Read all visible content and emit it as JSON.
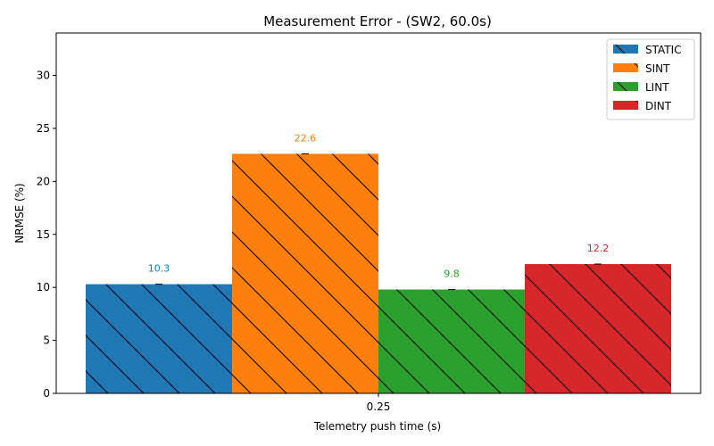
{
  "chart_data": {
    "type": "bar",
    "title": "Measurement Error - (SW2, 60.0s)",
    "xlabel": "Telemetry push time (s)",
    "ylabel": "NRMSE (%)",
    "categories": [
      "0.25"
    ],
    "ylim": [
      0,
      34
    ],
    "yticks": [
      0,
      5,
      10,
      15,
      20,
      25,
      30
    ],
    "hatch": "diagonal",
    "legend_position": "top-right",
    "series": [
      {
        "name": "STATIC",
        "values": [
          10.3
        ],
        "labels": [
          "10.3"
        ],
        "color": "#1f77b4"
      },
      {
        "name": "SINT",
        "values": [
          22.6
        ],
        "labels": [
          "22.6"
        ],
        "color": "#ff7f0e"
      },
      {
        "name": "LINT",
        "values": [
          9.8
        ],
        "labels": [
          "9.8"
        ],
        "color": "#2ca02c"
      },
      {
        "name": "DINT",
        "values": [
          12.2
        ],
        "labels": [
          "12.2"
        ],
        "color": "#d62728"
      }
    ]
  }
}
